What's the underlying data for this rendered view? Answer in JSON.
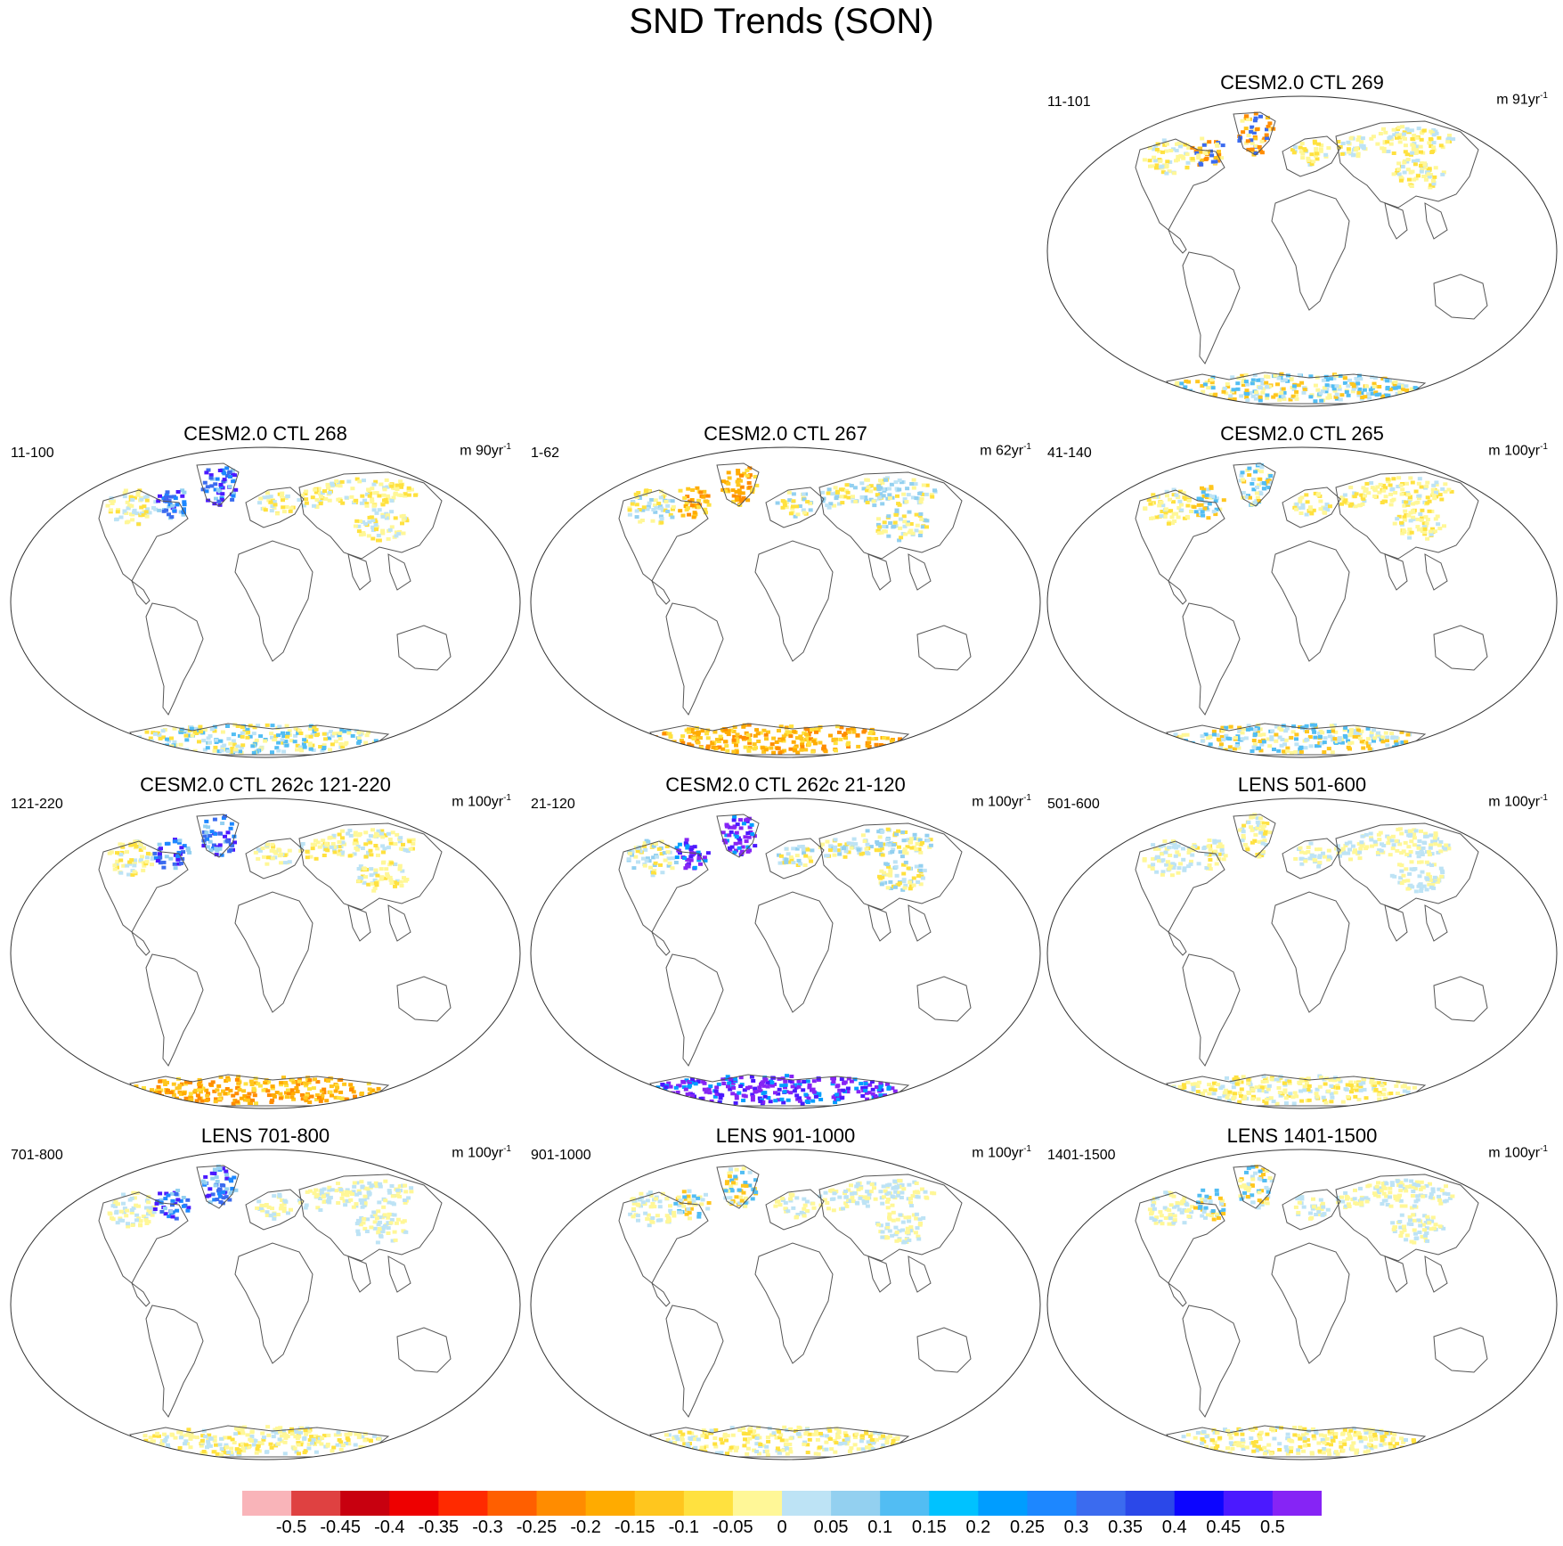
{
  "title": "SND Trends (SON)",
  "panels": [
    {
      "title": "CESM2.0 CTL 269",
      "left_label": "11-101",
      "units": "m 91yr",
      "units_sup": "-1",
      "greenland": "mixed-orange",
      "north": "yellow",
      "antarctica": "mixed-blue",
      "row": 0,
      "col": 2
    },
    {
      "title": "CESM2.0 CTL 268",
      "left_label": "11-100",
      "units": "m 90yr",
      "units_sup": "-1",
      "greenland": "blue",
      "north": "yellow",
      "antarctica": "mixed-yellow",
      "row": 1,
      "col": 0
    },
    {
      "title": "CESM2.0 CTL 267",
      "left_label": "1-62",
      "units": "m 62yr",
      "units_sup": "-1",
      "greenland": "orange",
      "north": "mixed",
      "antarctica": "orange",
      "row": 1,
      "col": 1
    },
    {
      "title": "CESM2.0 CTL 265",
      "left_label": "41-140",
      "units": "m 100yr",
      "units_sup": "-1",
      "greenland": "mixed-blue",
      "north": "yellow",
      "antarctica": "mixed-blue",
      "row": 1,
      "col": 2
    },
    {
      "title": "CESM2.0 CTL 262c 121-220",
      "left_label": "121-220",
      "units": "m 100yr",
      "units_sup": "-1",
      "greenland": "blue",
      "north": "yellow",
      "antarctica": "orange",
      "row": 2,
      "col": 0
    },
    {
      "title": "CESM2.0 CTL 262c 21-120",
      "left_label": "21-120",
      "units": "m 100yr",
      "units_sup": "-1",
      "greenland": "purple",
      "north": "mixed",
      "antarctica": "purple",
      "row": 2,
      "col": 1
    },
    {
      "title": "LENS 501-600",
      "left_label": "501-600",
      "units": "m 100yr",
      "units_sup": "-1",
      "greenland": "yellow",
      "north": "light",
      "antarctica": "yellow",
      "row": 2,
      "col": 2
    },
    {
      "title": "LENS 701-800",
      "left_label": "701-800",
      "units": "m 100yr",
      "units_sup": "-1",
      "greenland": "blue",
      "north": "light",
      "antarctica": "yellow",
      "row": 3,
      "col": 0
    },
    {
      "title": "LENS 901-1000",
      "left_label": "901-1000",
      "units": "m 100yr",
      "units_sup": "-1",
      "greenland": "mixed-blue",
      "north": "light",
      "antarctica": "yellow",
      "row": 3,
      "col": 1
    },
    {
      "title": "LENS 1401-1500",
      "left_label": "1401-1500",
      "units": "m 100yr",
      "units_sup": "-1",
      "greenland": "mixed-blue",
      "north": "light",
      "antarctica": "yellow",
      "row": 3,
      "col": 2
    }
  ],
  "colorbar": {
    "colors": [
      "#f9b4b9",
      "#df4141",
      "#c8000f",
      "#ee0000",
      "#ff2a00",
      "#ff5f00",
      "#ff8c00",
      "#ffab00",
      "#ffc61e",
      "#ffe13f",
      "#fff797",
      "#bde3f5",
      "#93d0f0",
      "#52bdf3",
      "#00c2ff",
      "#009dff",
      "#1d87ff",
      "#3b6bef",
      "#2b48e9",
      "#0c05ff",
      "#4b19ff",
      "#8624f5"
    ],
    "labels": [
      "-0.5",
      "-0.45",
      "-0.4",
      "-0.35",
      "-0.3",
      "-0.25",
      "-0.2",
      "-0.15",
      "-0.1",
      "-0.05",
      "0",
      "0.05",
      "0.1",
      "0.15",
      "0.2",
      "0.25",
      "0.3",
      "0.35",
      "0.4",
      "0.45",
      "0.5"
    ]
  }
}
